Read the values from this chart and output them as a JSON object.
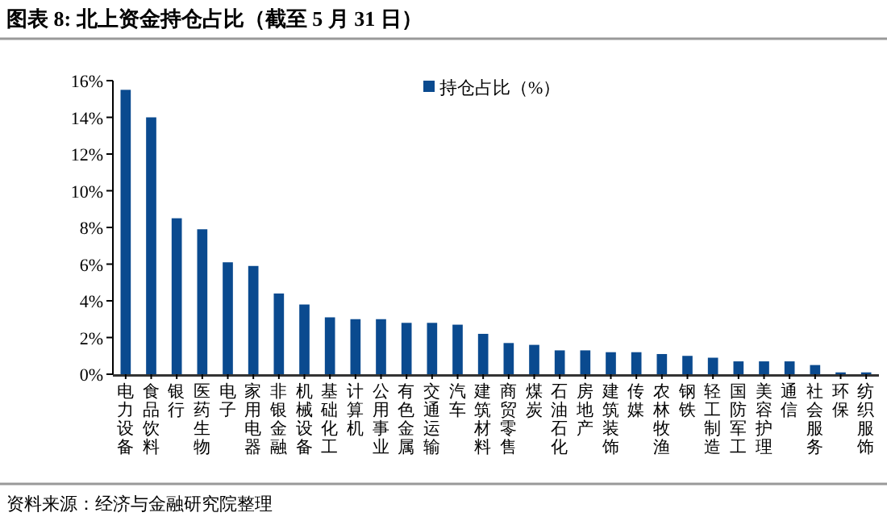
{
  "chart_data": {
    "type": "bar",
    "title": "图表 8:  北上资金持仓占比（截至 5 月 31 日）",
    "categories": [
      "电力设备",
      "食品饮料",
      "银行",
      "医药生物",
      "电子",
      "家用电器",
      "非银金融",
      "机械设备",
      "基础化工",
      "计算机",
      "公用事业",
      "有色金属",
      "交通运输",
      "汽车",
      "建筑材料",
      "商贸零售",
      "煤炭",
      "石油石化",
      "房地产",
      "建筑装饰",
      "传媒",
      "农林牧渔",
      "钢铁",
      "轻工制造",
      "国防军工",
      "美容护理",
      "通信",
      "社会服务",
      "环保",
      "纺织服饰"
    ],
    "series": [
      {
        "name": "持仓占比（%）",
        "color": "#0a4a8f",
        "values": [
          15.5,
          14.0,
          8.5,
          7.9,
          6.1,
          5.9,
          4.4,
          3.8,
          3.1,
          3.0,
          3.0,
          2.8,
          2.8,
          2.7,
          2.2,
          1.7,
          1.6,
          1.3,
          1.3,
          1.2,
          1.2,
          1.1,
          1.0,
          0.9,
          0.7,
          0.7,
          0.7,
          0.5,
          0.1,
          0.1
        ]
      }
    ],
    "ylim": [
      0,
      16
    ],
    "yticks": [
      {
        "value": 0,
        "label": "0%"
      },
      {
        "value": 2,
        "label": "2%"
      },
      {
        "value": 4,
        "label": "4%"
      },
      {
        "value": 6,
        "label": "6%"
      },
      {
        "value": 8,
        "label": "8%"
      },
      {
        "value": 10,
        "label": "10%"
      },
      {
        "value": 12,
        "label": "12%"
      },
      {
        "value": 14,
        "label": "14%"
      },
      {
        "value": 16,
        "label": "16%"
      }
    ],
    "legend": "top",
    "grid": false,
    "annotations": [
      "资料来源：经济与金融研究院整理"
    ]
  }
}
